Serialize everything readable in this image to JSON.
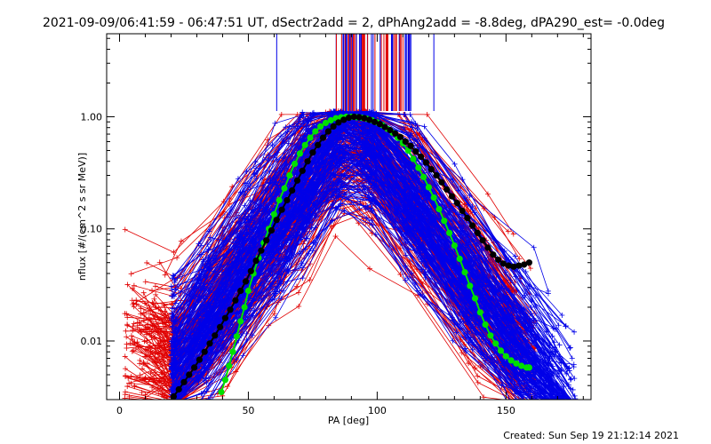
{
  "chart_data": {
    "type": "line",
    "title": "2021-09-09/06:41:59 - 06:47:51 UT, dSectr2add = 2, dPhAng2add = -8.8deg, dPA290_est= -0.0deg",
    "xlabel": "PA [deg]",
    "ylabel": "nflux [#/(cm^2 s sr MeV)]",
    "xlim": [
      -5,
      183
    ],
    "ylim": [
      0.003,
      5.5
    ],
    "yscale": "log",
    "xticks": [
      0,
      50,
      100,
      150
    ],
    "xtick_labels": [
      "0",
      "50",
      "100",
      "150"
    ],
    "yticks": [
      0.01,
      0.1,
      1.0
    ],
    "ytick_labels": [
      "0.01",
      "0.10",
      "1.00"
    ],
    "grid": false,
    "footer": "Created: Sun Sep 19 21:12:14 2021",
    "colors": {
      "red": "#e00000",
      "blue": "#0000e8",
      "green": "#00e000",
      "black": "#000000"
    },
    "series": [
      {
        "color": "red",
        "marker": "plus",
        "count": 170
      },
      {
        "color": "blue",
        "marker": "plus",
        "count": 200
      },
      {
        "color": "green",
        "marker": "filled-circle",
        "x": [
          39.5,
          41,
          42.5,
          44,
          45.5,
          47,
          48.5,
          50,
          52,
          54,
          56,
          58,
          60,
          62,
          64,
          66,
          68,
          70,
          72,
          74,
          76,
          78,
          80,
          82,
          84,
          86,
          88,
          90,
          92,
          94,
          96,
          98,
          100,
          102,
          104,
          106,
          108,
          110,
          112,
          114,
          116,
          118,
          120,
          122,
          124,
          126,
          128,
          130,
          132,
          134,
          136,
          138,
          140,
          142,
          144,
          146,
          148,
          150,
          152,
          154,
          156,
          158,
          159
        ],
        "y": [
          0.0035,
          0.0045,
          0.006,
          0.008,
          0.011,
          0.015,
          0.02,
          0.028,
          0.04,
          0.055,
          0.075,
          0.1,
          0.135,
          0.18,
          0.23,
          0.3,
          0.38,
          0.47,
          0.56,
          0.65,
          0.74,
          0.82,
          0.88,
          0.93,
          0.97,
          0.99,
          1.0,
          1.0,
          0.99,
          0.98,
          0.96,
          0.93,
          0.89,
          0.84,
          0.78,
          0.72,
          0.65,
          0.58,
          0.5,
          0.42,
          0.35,
          0.29,
          0.235,
          0.19,
          0.15,
          0.118,
          0.092,
          0.071,
          0.054,
          0.041,
          0.031,
          0.024,
          0.018,
          0.014,
          0.0112,
          0.0095,
          0.0082,
          0.0073,
          0.0067,
          0.0063,
          0.006,
          0.0058,
          0.0058
        ]
      },
      {
        "color": "black",
        "marker": "filled-circle",
        "x": [
          21,
          23,
          25,
          27,
          29,
          31,
          33,
          35,
          37,
          39,
          41,
          43,
          45,
          47,
          49,
          51,
          53,
          55,
          57,
          59,
          61,
          63,
          65,
          67,
          69,
          71,
          73,
          75,
          77,
          79,
          81,
          83,
          85,
          87,
          89,
          91,
          93,
          95,
          97,
          99,
          101,
          103,
          105,
          107,
          109,
          111,
          113,
          115,
          117,
          119,
          121,
          123,
          125,
          127,
          129,
          131,
          133,
          135,
          137,
          139,
          141,
          143,
          145,
          147,
          149,
          151,
          153,
          155,
          157,
          159
        ],
        "y": [
          0.0032,
          0.0037,
          0.0043,
          0.005,
          0.0058,
          0.0068,
          0.008,
          0.0095,
          0.0112,
          0.0133,
          0.016,
          0.019,
          0.023,
          0.028,
          0.034,
          0.042,
          0.052,
          0.064,
          0.079,
          0.097,
          0.12,
          0.148,
          0.18,
          0.22,
          0.27,
          0.33,
          0.4,
          0.48,
          0.56,
          0.65,
          0.74,
          0.82,
          0.89,
          0.94,
          0.98,
          1.0,
          0.99,
          0.97,
          0.94,
          0.9,
          0.86,
          0.81,
          0.76,
          0.71,
          0.66,
          0.6,
          0.55,
          0.49,
          0.44,
          0.39,
          0.34,
          0.3,
          0.26,
          0.225,
          0.195,
          0.17,
          0.145,
          0.125,
          0.107,
          0.092,
          0.079,
          0.068,
          0.059,
          0.053,
          0.049,
          0.047,
          0.046,
          0.047,
          0.048,
          0.05
        ]
      }
    ]
  }
}
